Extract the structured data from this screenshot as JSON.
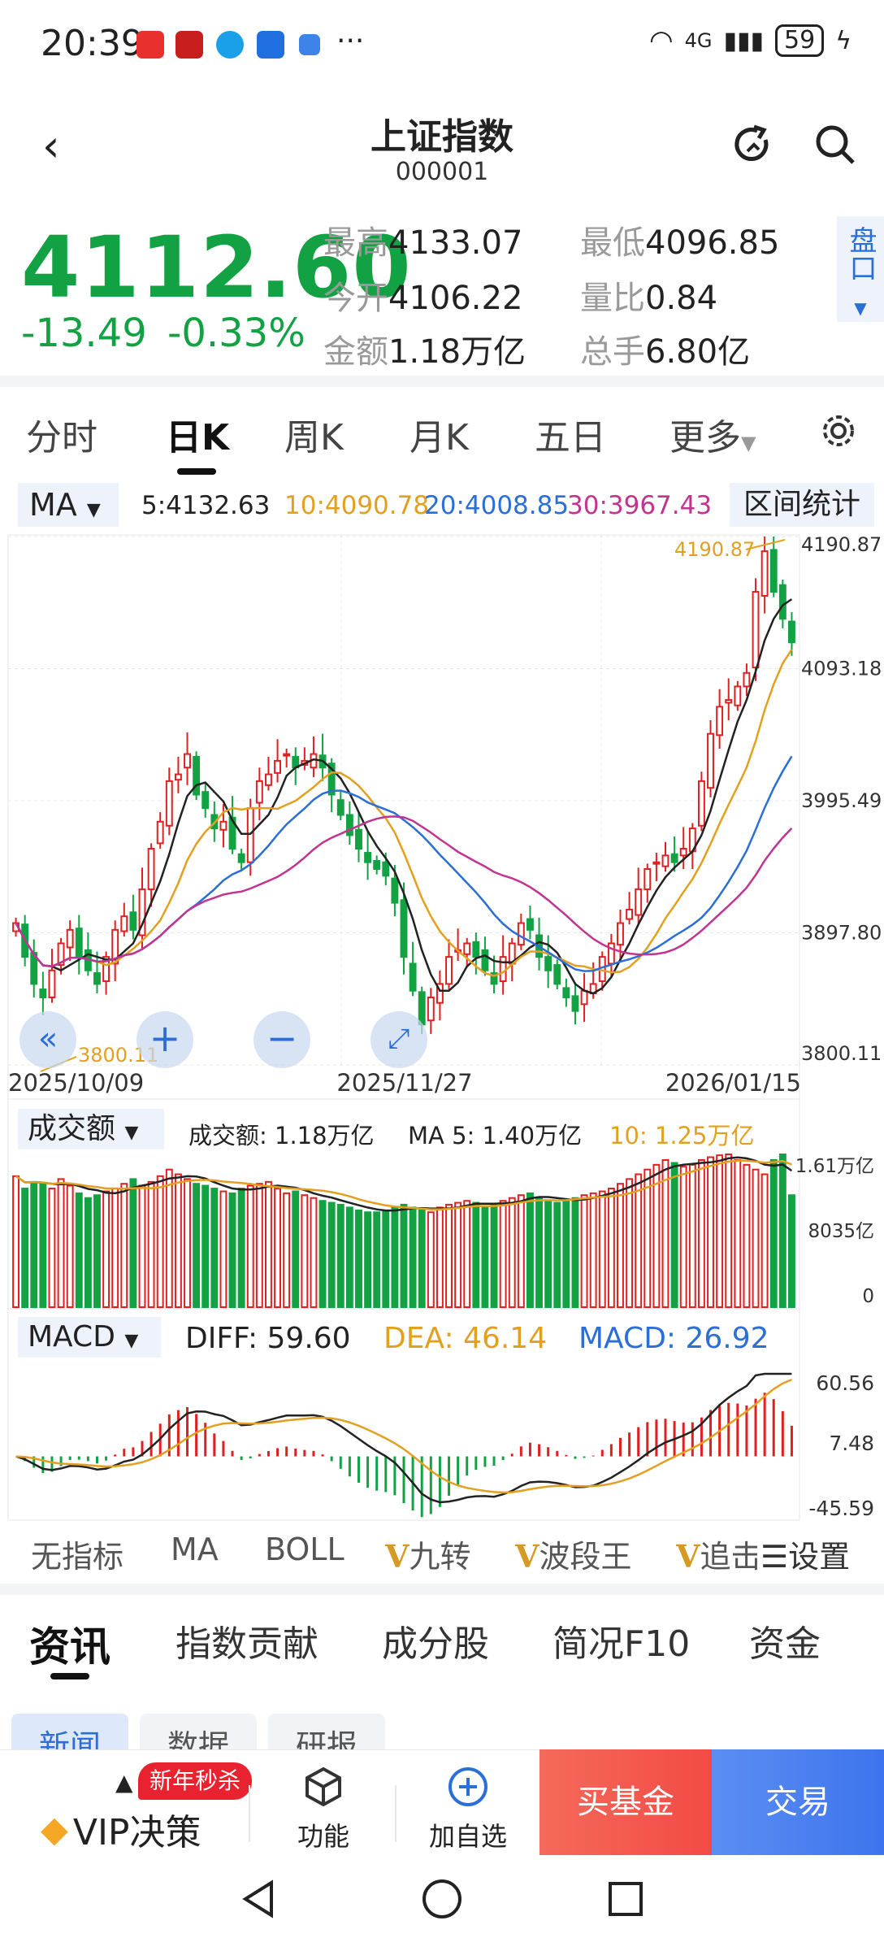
{
  "status_bar": {
    "time": "20:39",
    "battery": "59",
    "network": "4G",
    "more": "···"
  },
  "header": {
    "title": "上证指数",
    "code": "000001"
  },
  "quote": {
    "price": "4112.60",
    "change": "-13.49",
    "change_pct": "-0.33%",
    "high_label": "最高",
    "high": "4133.07",
    "low_label": "最低",
    "low": "4096.85",
    "open_label": "今开",
    "open": "4106.22",
    "ratio_label": "量比",
    "ratio": "0.84",
    "amount_label": "金额",
    "amount": "1.18万亿",
    "turnover_label": "总手",
    "turnover": "6.80亿",
    "pankou": "盘口"
  },
  "k_tabs": [
    "分时",
    "日K",
    "周K",
    "月K",
    "五日",
    "更多"
  ],
  "ma_row": {
    "select": "MA",
    "ma5": "5:4132.63",
    "ma10": "10:4090.78",
    "ma20": "20:4008.85",
    "ma30": "30:3967.43",
    "stat_button": "区间统计"
  },
  "price_axis": [
    "4190.87",
    "4093.18",
    "3995.49",
    "3897.80",
    "3800.11"
  ],
  "high_marker": "4190.87",
  "low_marker": "3800.11",
  "date_axis": [
    "2025/10/09",
    "2025/11/27",
    "2026/01/15"
  ],
  "volume": {
    "select": "成交额",
    "amount": "成交额:  1.18万亿",
    "ma5": "MA 5: 1.40万亿",
    "ma10": "10: 1.25万亿",
    "axis": [
      "1.61万亿",
      "8035亿",
      "0"
    ]
  },
  "macd": {
    "select": "MACD",
    "diff": "DIFF: 59.60",
    "dea": "DEA: 46.14",
    "macd": "MACD: 26.92",
    "axis": [
      "60.56",
      "7.48",
      "-45.59"
    ]
  },
  "indicators": {
    "none": "无指标",
    "ma": "MA",
    "boll": "BOLL",
    "v1": "九转",
    "v2": "波段王",
    "v3": "追击",
    "settings": "设置",
    "v_mark": "V"
  },
  "info_tabs": [
    "资讯",
    "指数贡献",
    "成分股",
    "简况F10",
    "资金"
  ],
  "info_subtabs": [
    "新闻",
    "数据",
    "研报"
  ],
  "bottom_bar": {
    "sale_tag": "新年秒杀",
    "vip": "VIP决策",
    "func": "功能",
    "add": "加自选",
    "buy_fund": "买基金",
    "trade": "交易"
  },
  "colors": {
    "up": "#e02020",
    "down": "#12a243",
    "ma5": "#222222",
    "ma10": "#e3a020",
    "ma20": "#2b6fd6",
    "ma30": "#c0358f",
    "accent": "#2b6fd6"
  },
  "chart_data": {
    "type": "candlestick",
    "x_range": [
      "2025/10/09",
      "2026/01/15"
    ],
    "y_range": [
      3800.11,
      4190.87
    ],
    "close": [
      3905,
      3880,
      3860,
      3850,
      3870,
      3890,
      3900,
      3880,
      3870,
      3860,
      3880,
      3900,
      3910,
      3900,
      3930,
      3960,
      3980,
      4010,
      4015,
      4030,
      4000,
      3990,
      3975,
      3980,
      3960,
      3950,
      3990,
      4010,
      4015,
      4025,
      4030,
      4020,
      4025,
      4030,
      4020,
      4000,
      3985,
      3970,
      3960,
      3950,
      3945,
      3940,
      3920,
      3880,
      3855,
      3830,
      3850,
      3860,
      3880,
      3885,
      3890,
      3880,
      3870,
      3860,
      3880,
      3890,
      3905,
      3900,
      3880,
      3870,
      3860,
      3850,
      3840,
      3855,
      3860,
      3880,
      3890,
      3905,
      3915,
      3930,
      3945,
      3950,
      3955,
      3950,
      3960,
      3975,
      4010,
      4045,
      4065,
      4070,
      4080,
      4090,
      4150,
      4180,
      4150,
      4130,
      4112.6
    ],
    "volume": [
      1.38,
      1.25,
      1.32,
      1.3,
      1.25,
      1.35,
      1.28,
      1.2,
      1.15,
      1.18,
      1.22,
      1.25,
      1.3,
      1.35,
      1.28,
      1.32,
      1.38,
      1.45,
      1.4,
      1.35,
      1.3,
      1.28,
      1.25,
      1.22,
      1.2,
      1.25,
      1.28,
      1.3,
      1.32,
      1.25,
      1.2,
      1.22,
      1.18,
      1.15,
      1.12,
      1.1,
      1.08,
      1.05,
      1.02,
      1.0,
      1.0,
      1.02,
      1.05,
      1.08,
      1.05,
      1.02,
      1.0,
      1.05,
      1.08,
      1.1,
      1.12,
      1.1,
      1.05,
      1.08,
      1.12,
      1.15,
      1.18,
      1.2,
      1.15,
      1.12,
      1.1,
      1.12,
      1.15,
      1.18,
      1.2,
      1.22,
      1.25,
      1.3,
      1.35,
      1.4,
      1.45,
      1.5,
      1.55,
      1.52,
      1.48,
      1.5,
      1.55,
      1.58,
      1.6,
      1.61,
      1.55,
      1.5,
      1.45,
      1.4,
      1.55,
      1.61,
      1.18
    ],
    "macd_range": [
      -45.59,
      60.56
    ]
  }
}
